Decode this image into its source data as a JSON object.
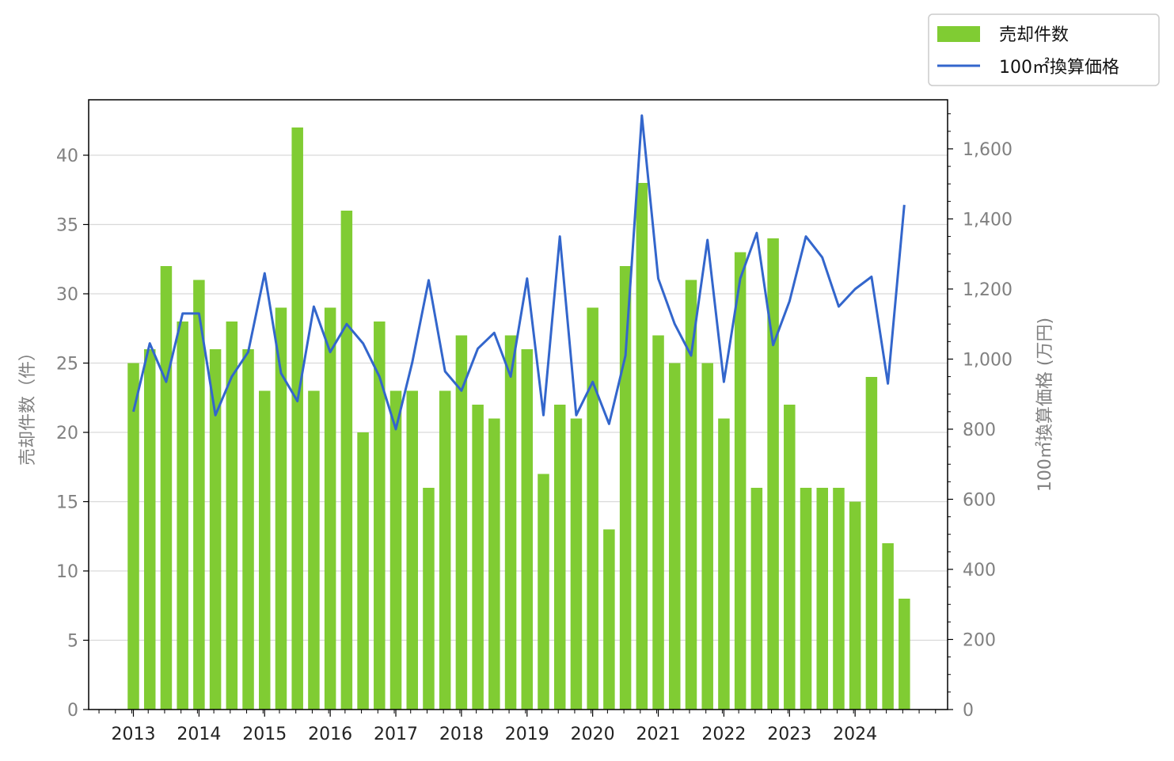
{
  "chart_data": {
    "type": "bar+line",
    "xlabel": "",
    "ylabel_left": "売却件数（件）",
    "ylabel_right": "100㎡換算価格 (万円)",
    "ylim_left": [
      0,
      44
    ],
    "ylim_right": [
      0,
      1740
    ],
    "left_ticks": [
      "0",
      "5",
      "10",
      "15",
      "20",
      "25",
      "30",
      "35",
      "40"
    ],
    "right_ticks": [
      "0",
      "200",
      "400",
      "600",
      "800",
      "1,000",
      "1,200",
      "1,400",
      "1,600"
    ],
    "year_labels": [
      "2013",
      "2014",
      "2015",
      "2016",
      "2017",
      "2018",
      "2019",
      "2020",
      "2021",
      "2022",
      "2023",
      "2024"
    ],
    "grid": true,
    "legend_position": "top-right",
    "colors": {
      "bars": "#80cc33",
      "line": "#3366cc",
      "grid": "#d9d9d9",
      "axis": "#000000"
    },
    "series": [
      {
        "name": "売却件数",
        "type": "bar",
        "axis": "left",
        "values": [
          25,
          26,
          32,
          28,
          31,
          26,
          28,
          26,
          23,
          29,
          42,
          23,
          29,
          36,
          20,
          28,
          23,
          23,
          16,
          23,
          27,
          22,
          21,
          27,
          26,
          17,
          22,
          21,
          29,
          13,
          32,
          38,
          27,
          25,
          31,
          25,
          21,
          33,
          16,
          34,
          22,
          16,
          16,
          16,
          15,
          24,
          12,
          8
        ]
      },
      {
        "name": "100㎡換算価格",
        "type": "line",
        "axis": "right",
        "values": [
          850,
          1045,
          935,
          1130,
          1130,
          840,
          950,
          1020,
          1245,
          960,
          880,
          1150,
          1020,
          1100,
          1045,
          950,
          800,
          990,
          1225,
          965,
          910,
          1030,
          1075,
          950,
          1230,
          840,
          1350,
          840,
          935,
          815,
          1010,
          1695,
          1230,
          1100,
          1010,
          1340,
          935,
          1230,
          1360,
          1040,
          1165,
          1350,
          1290,
          1150,
          1200,
          1235,
          930,
          1440
        ]
      }
    ]
  }
}
